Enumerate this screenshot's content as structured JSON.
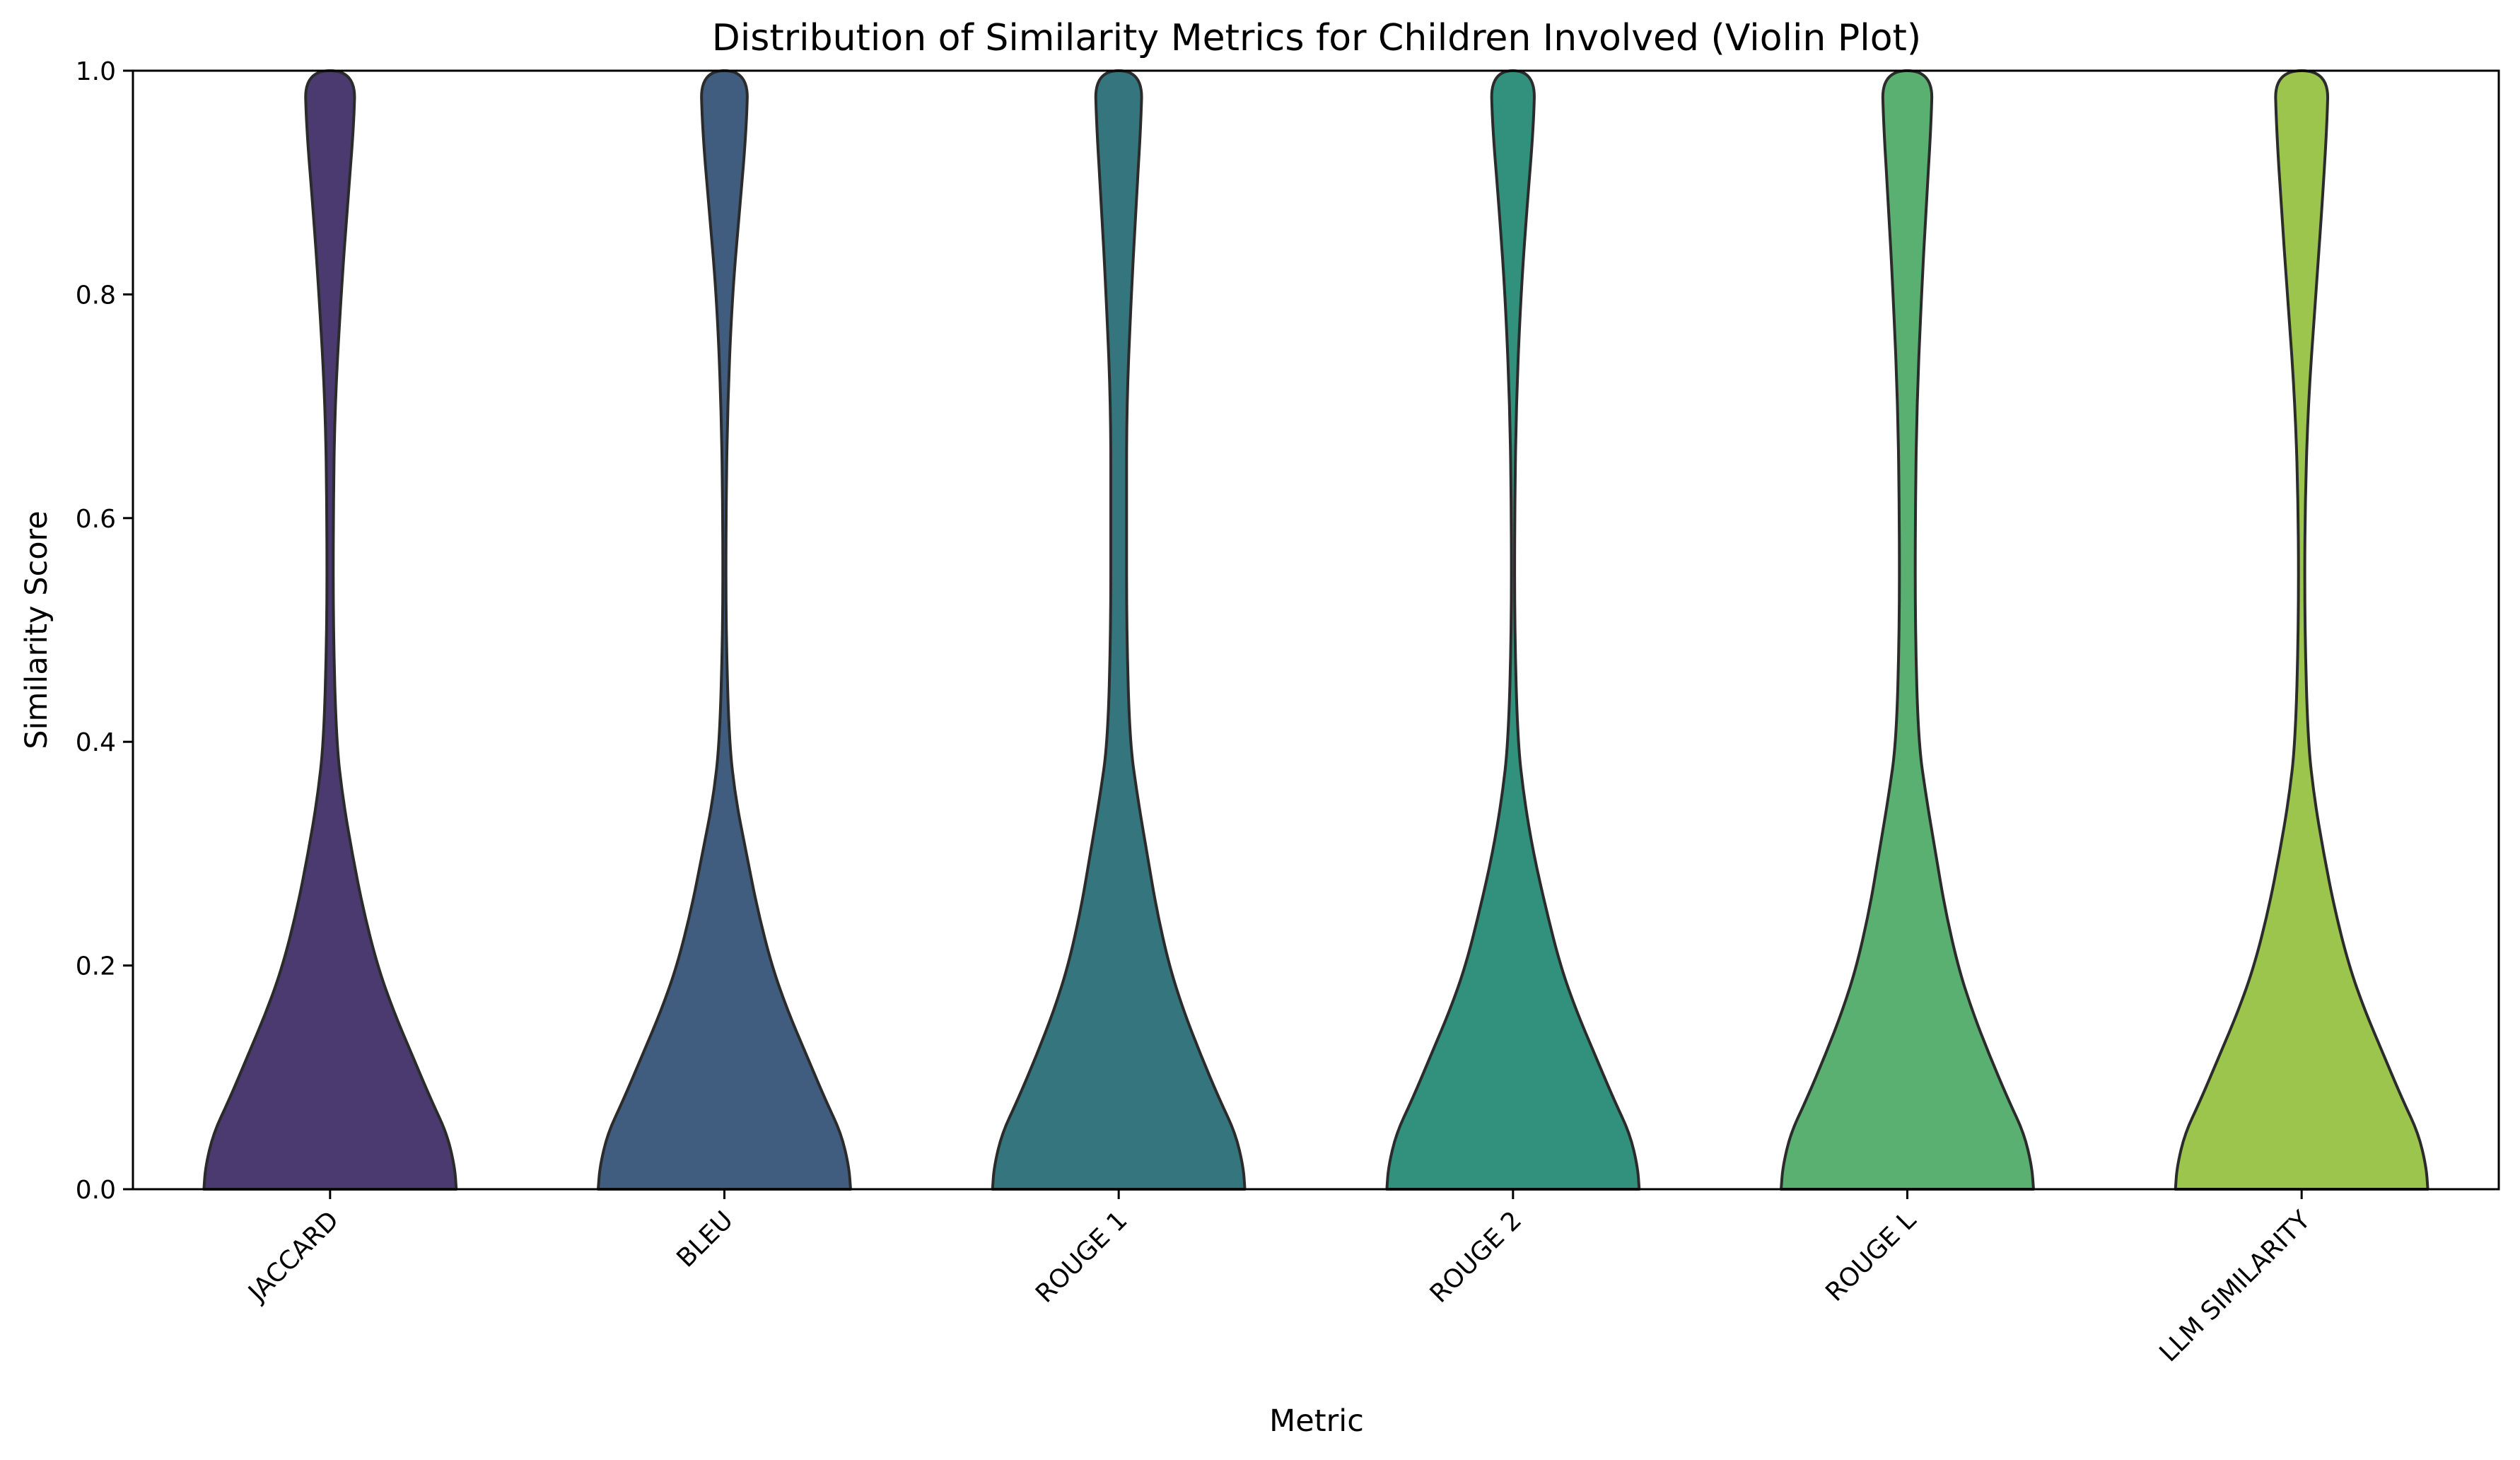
{
  "chart_data": {
    "type": "violin",
    "title": "Distribution of Similarity Metrics for Children Involved (Violin Plot)",
    "xlabel": "Metric",
    "ylabel": "Similarity Score",
    "ylim": [
      0,
      1
    ],
    "yticks": [
      "0.0",
      "0.2",
      "0.4",
      "0.6",
      "0.8",
      "1.0"
    ],
    "grid": false,
    "legend": "none",
    "categories": [
      "JACCARD",
      "BLEU",
      "ROUGE 1",
      "ROUGE 2",
      "ROUGE L",
      "LLM SIMILARITY"
    ],
    "colors": [
      "#4a3a70",
      "#405d80",
      "#35767e",
      "#31917c",
      "#5ab070",
      "#9bc54c"
    ],
    "series": [
      {
        "category": "JACCARD",
        "density_profile": [
          {
            "score": 0.0,
            "half_width": 0.8
          },
          {
            "score": 0.02,
            "half_width": 0.79
          },
          {
            "score": 0.05,
            "half_width": 0.74
          },
          {
            "score": 0.08,
            "half_width": 0.64
          },
          {
            "score": 0.12,
            "half_width": 0.52
          },
          {
            "score": 0.16,
            "half_width": 0.4
          },
          {
            "score": 0.2,
            "half_width": 0.3
          },
          {
            "score": 0.25,
            "half_width": 0.21
          },
          {
            "score": 0.3,
            "half_width": 0.14
          },
          {
            "score": 0.35,
            "half_width": 0.08
          },
          {
            "score": 0.4,
            "half_width": 0.04
          },
          {
            "score": 0.5,
            "half_width": 0.02
          },
          {
            "score": 0.6,
            "half_width": 0.02
          },
          {
            "score": 0.7,
            "half_width": 0.03
          },
          {
            "score": 0.8,
            "half_width": 0.07
          },
          {
            "score": 0.88,
            "half_width": 0.11
          },
          {
            "score": 0.95,
            "half_width": 0.15
          },
          {
            "score": 1.0,
            "half_width": 0.16
          }
        ]
      },
      {
        "category": "BLEU",
        "density_profile": [
          {
            "score": 0.0,
            "half_width": 0.8
          },
          {
            "score": 0.02,
            "half_width": 0.79
          },
          {
            "score": 0.05,
            "half_width": 0.74
          },
          {
            "score": 0.08,
            "half_width": 0.64
          },
          {
            "score": 0.12,
            "half_width": 0.52
          },
          {
            "score": 0.16,
            "half_width": 0.4
          },
          {
            "score": 0.2,
            "half_width": 0.3
          },
          {
            "score": 0.25,
            "half_width": 0.21
          },
          {
            "score": 0.3,
            "half_width": 0.14
          },
          {
            "score": 0.35,
            "half_width": 0.07
          },
          {
            "score": 0.4,
            "half_width": 0.03
          },
          {
            "score": 0.5,
            "half_width": 0.01
          },
          {
            "score": 0.6,
            "half_width": 0.01
          },
          {
            "score": 0.7,
            "half_width": 0.02
          },
          {
            "score": 0.8,
            "half_width": 0.05
          },
          {
            "score": 0.88,
            "half_width": 0.1
          },
          {
            "score": 0.95,
            "half_width": 0.14
          },
          {
            "score": 1.0,
            "half_width": 0.15
          }
        ]
      },
      {
        "category": "ROUGE 1",
        "density_profile": [
          {
            "score": 0.0,
            "half_width": 0.8
          },
          {
            "score": 0.02,
            "half_width": 0.79
          },
          {
            "score": 0.05,
            "half_width": 0.74
          },
          {
            "score": 0.08,
            "half_width": 0.64
          },
          {
            "score": 0.12,
            "half_width": 0.52
          },
          {
            "score": 0.16,
            "half_width": 0.41
          },
          {
            "score": 0.2,
            "half_width": 0.32
          },
          {
            "score": 0.25,
            "half_width": 0.24
          },
          {
            "score": 0.3,
            "half_width": 0.18
          },
          {
            "score": 0.35,
            "half_width": 0.12
          },
          {
            "score": 0.4,
            "half_width": 0.07
          },
          {
            "score": 0.5,
            "half_width": 0.05
          },
          {
            "score": 0.6,
            "half_width": 0.05
          },
          {
            "score": 0.7,
            "half_width": 0.05
          },
          {
            "score": 0.8,
            "half_width": 0.08
          },
          {
            "score": 0.88,
            "half_width": 0.11
          },
          {
            "score": 0.95,
            "half_width": 0.14
          },
          {
            "score": 1.0,
            "half_width": 0.15
          }
        ]
      },
      {
        "category": "ROUGE 2",
        "density_profile": [
          {
            "score": 0.0,
            "half_width": 0.8
          },
          {
            "score": 0.02,
            "half_width": 0.79
          },
          {
            "score": 0.05,
            "half_width": 0.74
          },
          {
            "score": 0.08,
            "half_width": 0.64
          },
          {
            "score": 0.12,
            "half_width": 0.52
          },
          {
            "score": 0.16,
            "half_width": 0.4
          },
          {
            "score": 0.2,
            "half_width": 0.3
          },
          {
            "score": 0.25,
            "half_width": 0.21
          },
          {
            "score": 0.3,
            "half_width": 0.13
          },
          {
            "score": 0.35,
            "half_width": 0.07
          },
          {
            "score": 0.4,
            "half_width": 0.03
          },
          {
            "score": 0.5,
            "half_width": 0.01
          },
          {
            "score": 0.6,
            "half_width": 0.01
          },
          {
            "score": 0.7,
            "half_width": 0.02
          },
          {
            "score": 0.8,
            "half_width": 0.05
          },
          {
            "score": 0.88,
            "half_width": 0.09
          },
          {
            "score": 0.95,
            "half_width": 0.13
          },
          {
            "score": 1.0,
            "half_width": 0.14
          }
        ]
      },
      {
        "category": "ROUGE L",
        "density_profile": [
          {
            "score": 0.0,
            "half_width": 0.8
          },
          {
            "score": 0.02,
            "half_width": 0.79
          },
          {
            "score": 0.05,
            "half_width": 0.74
          },
          {
            "score": 0.08,
            "half_width": 0.64
          },
          {
            "score": 0.12,
            "half_width": 0.52
          },
          {
            "score": 0.16,
            "half_width": 0.41
          },
          {
            "score": 0.2,
            "half_width": 0.32
          },
          {
            "score": 0.25,
            "half_width": 0.24
          },
          {
            "score": 0.3,
            "half_width": 0.18
          },
          {
            "score": 0.35,
            "half_width": 0.12
          },
          {
            "score": 0.4,
            "half_width": 0.07
          },
          {
            "score": 0.5,
            "half_width": 0.05
          },
          {
            "score": 0.6,
            "half_width": 0.05
          },
          {
            "score": 0.7,
            "half_width": 0.06
          },
          {
            "score": 0.8,
            "half_width": 0.09
          },
          {
            "score": 0.88,
            "half_width": 0.12
          },
          {
            "score": 0.95,
            "half_width": 0.15
          },
          {
            "score": 1.0,
            "half_width": 0.16
          }
        ]
      },
      {
        "category": "LLM SIMILARITY",
        "density_profile": [
          {
            "score": 0.0,
            "half_width": 0.8
          },
          {
            "score": 0.02,
            "half_width": 0.79
          },
          {
            "score": 0.05,
            "half_width": 0.74
          },
          {
            "score": 0.08,
            "half_width": 0.64
          },
          {
            "score": 0.12,
            "half_width": 0.52
          },
          {
            "score": 0.16,
            "half_width": 0.4
          },
          {
            "score": 0.2,
            "half_width": 0.3
          },
          {
            "score": 0.25,
            "half_width": 0.21
          },
          {
            "score": 0.3,
            "half_width": 0.14
          },
          {
            "score": 0.35,
            "half_width": 0.08
          },
          {
            "score": 0.4,
            "half_width": 0.04
          },
          {
            "score": 0.5,
            "half_width": 0.02
          },
          {
            "score": 0.6,
            "half_width": 0.02
          },
          {
            "score": 0.7,
            "half_width": 0.04
          },
          {
            "score": 0.8,
            "half_width": 0.09
          },
          {
            "score": 0.88,
            "half_width": 0.13
          },
          {
            "score": 0.95,
            "half_width": 0.16
          },
          {
            "score": 1.0,
            "half_width": 0.17
          }
        ]
      }
    ]
  }
}
